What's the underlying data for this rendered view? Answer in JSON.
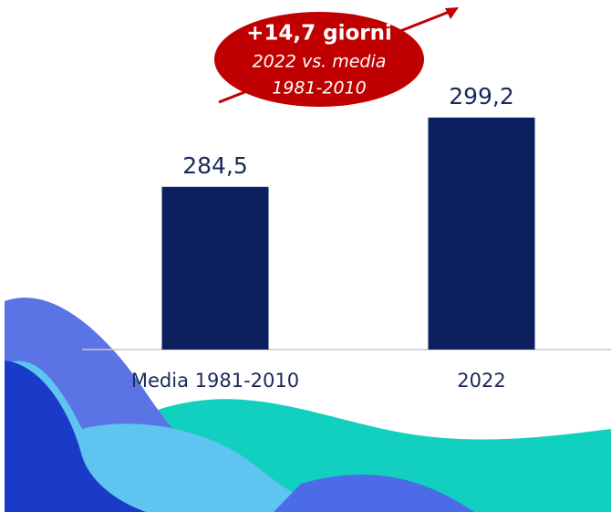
{
  "chart_data": {
    "type": "bar",
    "categories": [
      "Media 1981-2010",
      "2022"
    ],
    "values": [
      284.5,
      299.2
    ],
    "value_labels": [
      "284,5",
      "299,2"
    ],
    "color": "#0c1f5e",
    "ylim": [
      250,
      310
    ],
    "annotation": [
      "+14,7 giorni",
      "2022 vs. media",
      "1981-2010"
    ]
  }
}
